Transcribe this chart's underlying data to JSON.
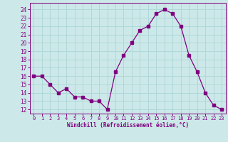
{
  "x": [
    0,
    1,
    2,
    3,
    4,
    5,
    6,
    7,
    8,
    9,
    10,
    11,
    12,
    13,
    14,
    15,
    16,
    17,
    18,
    19,
    20,
    21,
    22,
    23
  ],
  "y": [
    16,
    16,
    15,
    14,
    14.5,
    13.5,
    13.5,
    13,
    13,
    12,
    16.5,
    18.5,
    20,
    21.5,
    22,
    23.5,
    24,
    23.5,
    22,
    18.5,
    16.5,
    14,
    12.5,
    12
  ],
  "line_color": "#800080",
  "marker": "s",
  "marker_size": 2.2,
  "bg_color": "#cce8e8",
  "grid_color": "#b0d8d8",
  "xlabel": "Windchill (Refroidissement éolien,°C)",
  "xlabel_color": "#800080",
  "tick_color": "#800080",
  "ylim": [
    11.5,
    24.8
  ],
  "xlim": [
    -0.5,
    23.5
  ],
  "yticks": [
    12,
    13,
    14,
    15,
    16,
    17,
    18,
    19,
    20,
    21,
    22,
    23,
    24
  ],
  "xticks": [
    0,
    1,
    2,
    3,
    4,
    5,
    6,
    7,
    8,
    9,
    10,
    11,
    12,
    13,
    14,
    15,
    16,
    17,
    18,
    19,
    20,
    21,
    22,
    23
  ]
}
